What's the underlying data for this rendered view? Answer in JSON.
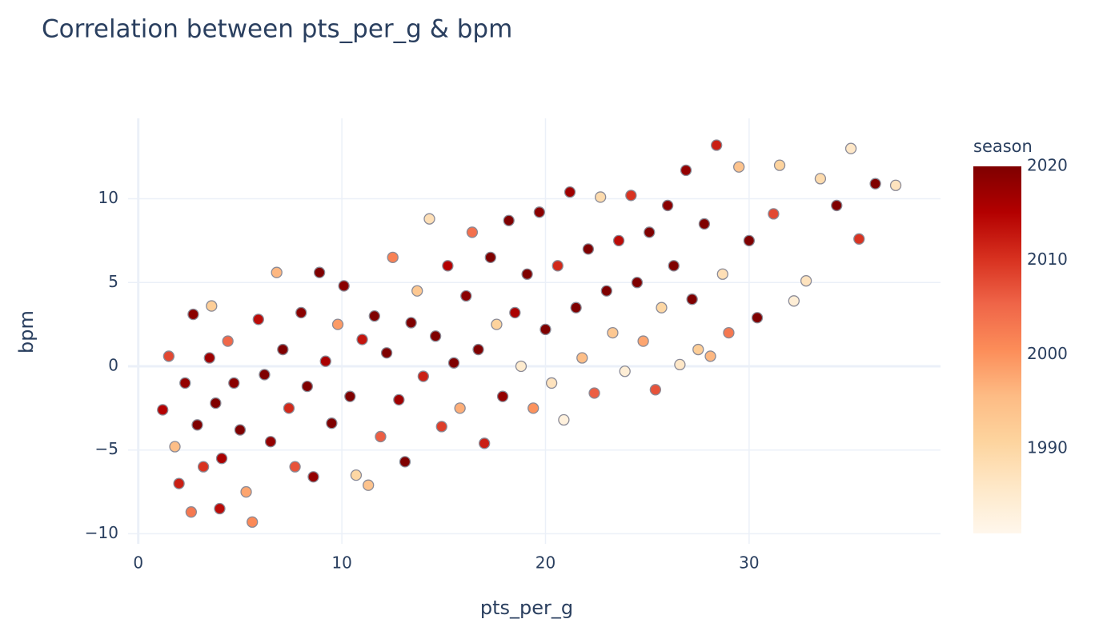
{
  "chart_data": {
    "type": "scatter",
    "title": "Correlation between pts_per_g & bpm",
    "x_label": "pts_per_g",
    "y_label": "bpm",
    "xlim": [
      -0.5,
      39.4
    ],
    "ylim": [
      -10.6,
      14.8
    ],
    "xticks": [
      0,
      10,
      20,
      30
    ],
    "yticks": [
      {
        "value": -10,
        "label": "−10"
      },
      {
        "value": -5,
        "label": "−5"
      },
      0,
      5,
      10
    ],
    "grid": true,
    "colorbar": {
      "title": "season",
      "range": [
        1981,
        2020
      ],
      "ticks": [
        1990,
        2000,
        2010,
        2020
      ],
      "colorscale": [
        "#fff7ec",
        "#fee8c8",
        "#fdd49e",
        "#fdbb84",
        "#fc8d59",
        "#ef6548",
        "#d7301f",
        "#b30000",
        "#7f0000"
      ]
    },
    "marker_line_color": "#8a8a96",
    "x": [
      1.2,
      1.5,
      1.8,
      2.0,
      2.3,
      2.6,
      2.7,
      2.9,
      3.2,
      3.5,
      3.6,
      3.8,
      4.1,
      4.4,
      4.7,
      5.0,
      5.3,
      5.6,
      5.9,
      6.2,
      6.5,
      6.8,
      7.1,
      7.4,
      7.7,
      8.0,
      8.3,
      8.6,
      8.9,
      9.2,
      9.5,
      9.8,
      10.1,
      10.4,
      10.7,
      11.0,
      11.3,
      11.6,
      11.9,
      12.2,
      12.5,
      12.8,
      13.1,
      13.4,
      13.7,
      14.0,
      14.3,
      14.6,
      14.9,
      15.2,
      15.5,
      15.8,
      16.1,
      16.4,
      16.7,
      17.0,
      17.3,
      17.6,
      17.9,
      18.2,
      18.5,
      18.8,
      19.1,
      19.4,
      19.7,
      20.0,
      20.3,
      20.6,
      20.9,
      21.2,
      21.5,
      21.8,
      22.1,
      22.4,
      22.7,
      23.0,
      23.3,
      23.6,
      23.9,
      24.2,
      24.5,
      24.8,
      25.1,
      25.4,
      25.7,
      26.0,
      26.3,
      26.6,
      26.9,
      27.2,
      27.5,
      27.8,
      28.1,
      28.4,
      28.7,
      29.0,
      29.5,
      30.0,
      30.4,
      31.2,
      31.5,
      32.2,
      32.8,
      33.5,
      34.3,
      35.0,
      35.4,
      36.2,
      37.2,
      4.0
    ],
    "y": [
      -2.6,
      0.6,
      -4.8,
      -7.0,
      -1.0,
      -8.7,
      3.1,
      -3.5,
      -6.0,
      0.5,
      3.6,
      -2.2,
      -5.5,
      1.5,
      -1.0,
      -3.8,
      -7.5,
      -9.3,
      2.8,
      -0.5,
      -4.5,
      5.6,
      1.0,
      -2.5,
      -6.0,
      3.2,
      -1.2,
      -6.6,
      5.6,
      0.3,
      -3.4,
      2.5,
      4.8,
      -1.8,
      -6.5,
      1.6,
      -7.1,
      3.0,
      -4.2,
      0.8,
      6.5,
      -2.0,
      -5.7,
      2.6,
      4.5,
      -0.6,
      8.8,
      1.8,
      -3.6,
      6.0,
      0.2,
      -2.5,
      4.2,
      8.0,
      1.0,
      -4.6,
      6.5,
      2.5,
      -1.8,
      8.7,
      3.2,
      0.0,
      5.5,
      -2.5,
      9.2,
      2.2,
      -1.0,
      6.0,
      -3.2,
      10.4,
      3.5,
      0.5,
      7.0,
      -1.6,
      10.1,
      4.5,
      2.0,
      7.5,
      -0.3,
      10.2,
      5.0,
      1.5,
      8.0,
      -1.4,
      3.5,
      9.6,
      6.0,
      0.1,
      11.7,
      4.0,
      1.0,
      8.5,
      0.6,
      13.2,
      5.5,
      2.0,
      11.9,
      7.5,
      2.9,
      9.1,
      12.0,
      3.9,
      5.1,
      11.2,
      9.6,
      13.0,
      7.6,
      10.9,
      10.8,
      -8.5
    ],
    "season": [
      2015,
      2008,
      1995,
      2012,
      2018,
      2003,
      2019,
      2020,
      2010,
      2017,
      1992,
      2020,
      2016,
      2005,
      2019,
      2020,
      1998,
      2001,
      2014,
      2020,
      2018,
      1996,
      2020,
      2011,
      2007,
      2019,
      2020,
      2018,
      2020,
      2016,
      2020,
      1999,
      2019,
      2020,
      1990,
      2013,
      1994,
      2020,
      2006,
      2020,
      2002,
      2017,
      2020,
      2020,
      1993,
      2012,
      1988,
      2020,
      2009,
      2015,
      2020,
      1997,
      2019,
      2004,
      2020,
      2012,
      2020,
      1991,
      2018,
      2020,
      2016,
      1985,
      2020,
      2000,
      2019,
      2020,
      1987,
      2011,
      1983,
      2017,
      2020,
      1995,
      2020,
      2006,
      1989,
      2020,
      1993,
      2014,
      1984,
      2010,
      2020,
      1998,
      2020,
      2007,
      1990,
      2019,
      2020,
      1986,
      2018,
      2020,
      1992,
      2020,
      1996,
      2012,
      1988,
      2003,
      1994,
      2020,
      2020,
      2008,
      1991,
      1984,
      1987,
      1989,
      2020,
      1986,
      2010,
      2020,
      1987,
      2014
    ]
  }
}
